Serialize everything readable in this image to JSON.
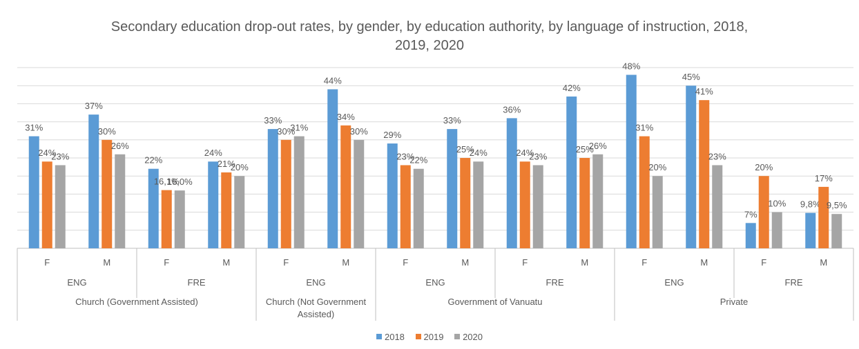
{
  "chart_data": {
    "type": "bar",
    "title_lines": [
      "Secondary education drop-out rates, by gender, by education authority, by language of instruction, 2018,",
      "2019, 2020"
    ],
    "series": [
      {
        "name": "2018",
        "color": "#5B9BD5",
        "values": [
          31,
          37,
          22,
          24,
          33,
          44,
          29,
          33,
          36,
          42,
          48,
          45,
          7,
          9.8
        ],
        "labels": [
          "31%",
          "37%",
          "22%",
          "24%",
          "33%",
          "44%",
          "29%",
          "33%",
          "36%",
          "42%",
          "48%",
          "45%",
          "7%",
          "9,8%"
        ]
      },
      {
        "name": "2019",
        "color": "#ED7D31",
        "values": [
          24,
          30,
          16.1,
          21,
          30,
          34,
          23,
          25,
          24,
          25,
          31,
          41,
          20,
          17
        ],
        "labels": [
          "24%",
          "30%",
          "16,1%",
          "21%",
          "30%",
          "34%",
          "23%",
          "25%",
          "24%",
          "25%",
          "31%",
          "41%",
          "20%",
          "17%"
        ]
      },
      {
        "name": "2020",
        "color": "#A5A5A5",
        "values": [
          23,
          26,
          16.0,
          20,
          31,
          30,
          22,
          24,
          23,
          26,
          20,
          23,
          10,
          9.5
        ],
        "labels": [
          "23%",
          "26%",
          "16,0%",
          "20%",
          "31%",
          "30%",
          "22%",
          "24%",
          "23%",
          "26%",
          "20%",
          "23%",
          "10%",
          "9,5%"
        ]
      }
    ],
    "categories": [
      {
        "gender": "F",
        "language": "ENG",
        "authority": "Church (Government Assisted)"
      },
      {
        "gender": "M",
        "language": "ENG",
        "authority": "Church (Government Assisted)"
      },
      {
        "gender": "F",
        "language": "FRE",
        "authority": "Church (Government Assisted)"
      },
      {
        "gender": "M",
        "language": "FRE",
        "authority": "Church (Government Assisted)"
      },
      {
        "gender": "F",
        "language": "ENG",
        "authority": "Church (Not Government Assisted)"
      },
      {
        "gender": "M",
        "language": "ENG",
        "authority": "Church (Not Government Assisted)"
      },
      {
        "gender": "F",
        "language": "ENG",
        "authority": "Government of Vanuatu"
      },
      {
        "gender": "M",
        "language": "ENG",
        "authority": "Government of Vanuatu"
      },
      {
        "gender": "F",
        "language": "FRE",
        "authority": "Government of Vanuatu"
      },
      {
        "gender": "M",
        "language": "FRE",
        "authority": "Government of Vanuatu"
      },
      {
        "gender": "F",
        "language": "ENG",
        "authority": "Private"
      },
      {
        "gender": "M",
        "language": "ENG",
        "authority": "Private"
      },
      {
        "gender": "F",
        "language": "FRE",
        "authority": "Private"
      },
      {
        "gender": "M",
        "language": "FRE",
        "authority": "Private"
      }
    ],
    "language_groups": [
      {
        "label": "ENG",
        "start": 0,
        "end": 1
      },
      {
        "label": "FRE",
        "start": 2,
        "end": 3
      },
      {
        "label": "ENG",
        "start": 4,
        "end": 5
      },
      {
        "label": "ENG",
        "start": 6,
        "end": 7
      },
      {
        "label": "FRE",
        "start": 8,
        "end": 9
      },
      {
        "label": "ENG",
        "start": 10,
        "end": 11
      },
      {
        "label": "FRE",
        "start": 12,
        "end": 13
      }
    ],
    "authority_groups": [
      {
        "lines": [
          "Church (Government Assisted)"
        ],
        "start": 0,
        "end": 3
      },
      {
        "lines": [
          "Church (Not Government",
          "Assisted)"
        ],
        "start": 4,
        "end": 5
      },
      {
        "lines": [
          "Government of Vanuatu"
        ],
        "start": 6,
        "end": 9
      },
      {
        "lines": [
          "Private"
        ],
        "start": 10,
        "end": 13
      }
    ],
    "ylim": [
      0,
      50
    ],
    "gridlines": true,
    "y_axis_labels": false,
    "legend_position": "bottom"
  }
}
